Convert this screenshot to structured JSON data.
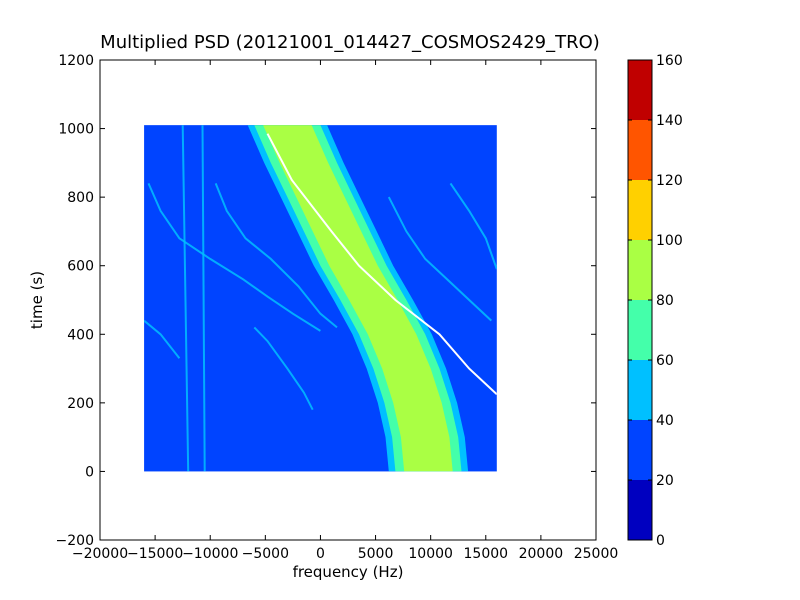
{
  "chart_data": {
    "type": "heatmap",
    "title": "Multiplied PSD (20121001_014427_COSMOS2429_TRO)",
    "xlabel": "frequency (Hz)",
    "ylabel": "time (s)",
    "xlim": [
      -20000,
      25000
    ],
    "ylim": [
      -200,
      1200
    ],
    "xticks": [
      -20000,
      -15000,
      -10000,
      -5000,
      0,
      5000,
      10000,
      15000,
      20000,
      25000
    ],
    "yticks": [
      -200,
      0,
      200,
      400,
      600,
      800,
      1000,
      1200
    ],
    "data_extent": {
      "freq": [
        -16000,
        16000
      ],
      "time": [
        0,
        1010
      ]
    },
    "background_value": 30,
    "colorbar": {
      "min": 0,
      "max": 160,
      "ticks": [
        0,
        20,
        40,
        60,
        80,
        100,
        120,
        140,
        160
      ],
      "levels": [
        {
          "from": 0,
          "to": 20,
          "color": "#0000c0"
        },
        {
          "from": 20,
          "to": 40,
          "color": "#0044ff"
        },
        {
          "from": 40,
          "to": 60,
          "color": "#00c0ff"
        },
        {
          "from": 60,
          "to": 80,
          "color": "#44ffaa"
        },
        {
          "from": 80,
          "to": 100,
          "color": "#aaff44"
        },
        {
          "from": 100,
          "to": 120,
          "color": "#ffd000"
        },
        {
          "from": 120,
          "to": 140,
          "color": "#ff5500"
        },
        {
          "from": 140,
          "to": 160,
          "color": "#c00000"
        }
      ]
    },
    "main_band": {
      "center_points": [
        {
          "time": 1010,
          "freq": -3000
        },
        {
          "time": 900,
          "freq": -1500
        },
        {
          "time": 800,
          "freq": 0
        },
        {
          "time": 700,
          "freq": 1500
        },
        {
          "time": 600,
          "freq": 3000
        },
        {
          "time": 500,
          "freq": 4800
        },
        {
          "time": 400,
          "freq": 6500
        },
        {
          "time": 300,
          "freq": 7800
        },
        {
          "time": 200,
          "freq": 8800
        },
        {
          "time": 100,
          "freq": 9500
        },
        {
          "time": 0,
          "freq": 9800
        }
      ],
      "layers": [
        {
          "halfwidth_freq": 3600,
          "value": 50
        },
        {
          "halfwidth_freq": 3000,
          "value": 70
        },
        {
          "halfwidth_freq": 2200,
          "value": 85
        }
      ]
    },
    "doppler_line": {
      "value": 160,
      "color": "#ffffff",
      "points": [
        {
          "time": 985,
          "freq": -4800
        },
        {
          "time": 850,
          "freq": -2600
        },
        {
          "time": 700,
          "freq": 1000
        },
        {
          "time": 600,
          "freq": 3500
        },
        {
          "time": 500,
          "freq": 6800
        },
        {
          "time": 400,
          "freq": 10800
        },
        {
          "time": 300,
          "freq": 13500
        },
        {
          "time": 225,
          "freq": 16000
        }
      ]
    },
    "faint_traces": [
      {
        "value": 50,
        "points": [
          {
            "time": 840,
            "freq": -15600
          },
          {
            "time": 760,
            "freq": -14500
          },
          {
            "time": 680,
            "freq": -12800
          },
          {
            "time": 620,
            "freq": -10000
          },
          {
            "time": 560,
            "freq": -7000
          },
          {
            "time": 510,
            "freq": -4800
          },
          {
            "time": 460,
            "freq": -2500
          },
          {
            "time": 410,
            "freq": 0
          }
        ]
      },
      {
        "value": 50,
        "points": [
          {
            "time": 840,
            "freq": -9500
          },
          {
            "time": 760,
            "freq": -8500
          },
          {
            "time": 680,
            "freq": -6800
          },
          {
            "time": 620,
            "freq": -4500
          },
          {
            "time": 540,
            "freq": -2000
          },
          {
            "time": 460,
            "freq": 0
          },
          {
            "time": 420,
            "freq": 1500
          }
        ]
      },
      {
        "value": 50,
        "points": [
          {
            "time": 440,
            "freq": -16000
          },
          {
            "time": 400,
            "freq": -14500
          },
          {
            "time": 330,
            "freq": -12800
          }
        ]
      },
      {
        "value": 50,
        "points": [
          {
            "time": 420,
            "freq": -6000
          },
          {
            "time": 380,
            "freq": -4800
          },
          {
            "time": 300,
            "freq": -3000
          },
          {
            "time": 230,
            "freq": -1500
          },
          {
            "time": 180,
            "freq": -700
          }
        ]
      },
      {
        "value": 50,
        "points": [
          {
            "time": 800,
            "freq": 6200
          },
          {
            "time": 700,
            "freq": 7800
          },
          {
            "time": 620,
            "freq": 9500
          },
          {
            "time": 560,
            "freq": 11500
          },
          {
            "time": 500,
            "freq": 13500
          },
          {
            "time": 440,
            "freq": 15500
          }
        ]
      },
      {
        "value": 50,
        "points": [
          {
            "time": 840,
            "freq": 11800
          },
          {
            "time": 760,
            "freq": 13500
          },
          {
            "time": 680,
            "freq": 15000
          },
          {
            "time": 590,
            "freq": 16000
          }
        ]
      },
      {
        "value": 50,
        "points": [
          {
            "time": 1010,
            "freq": -12500
          },
          {
            "time": 0,
            "freq": -12000
          }
        ]
      },
      {
        "value": 50,
        "points": [
          {
            "time": 1010,
            "freq": -10700
          },
          {
            "time": 0,
            "freq": -10500
          }
        ]
      }
    ]
  }
}
